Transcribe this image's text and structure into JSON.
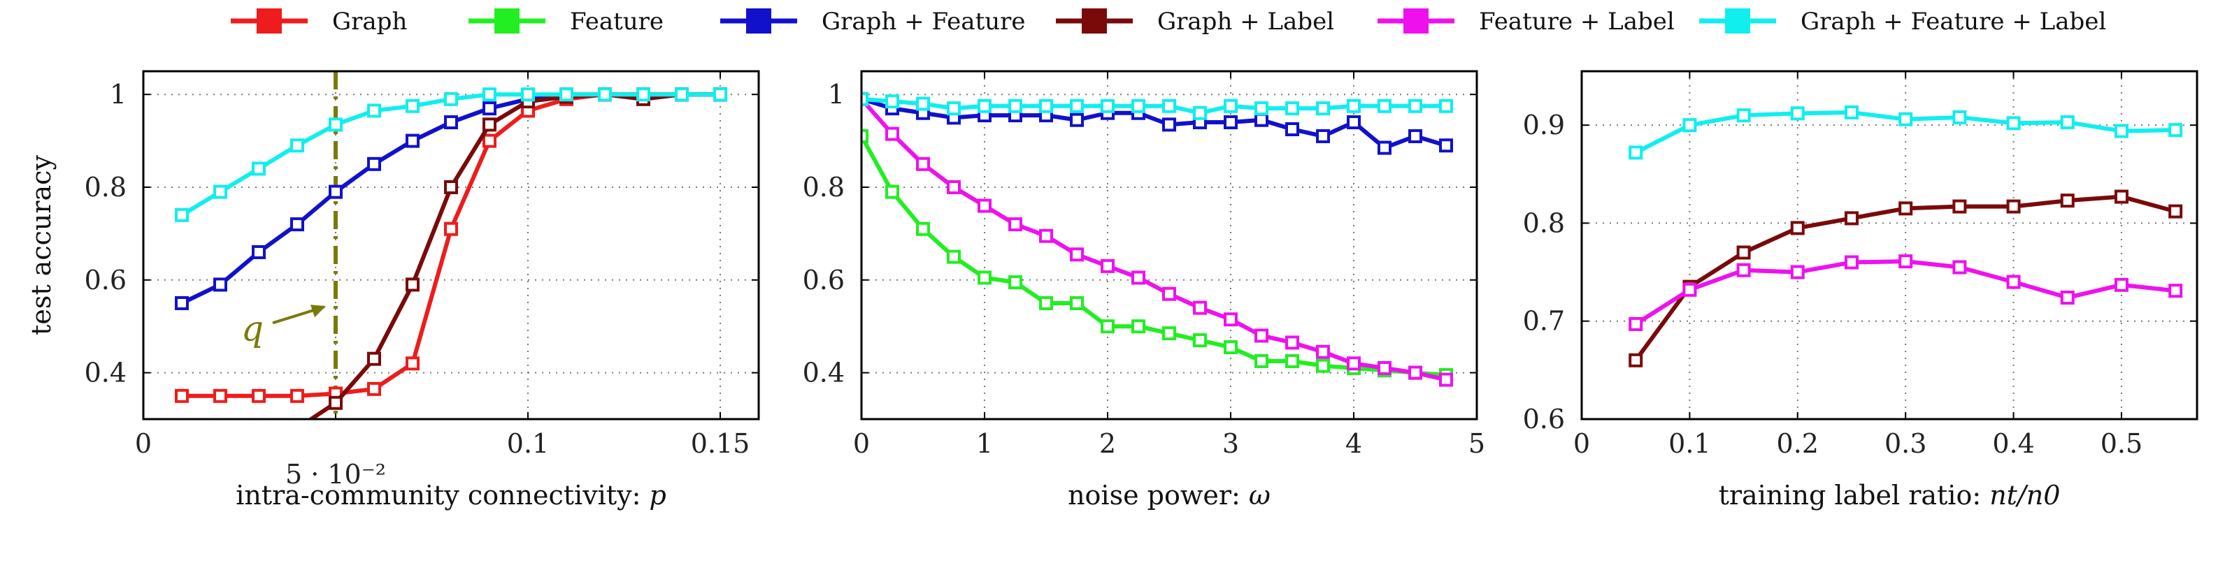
{
  "legend": {
    "items": [
      {
        "name": "Graph",
        "color": "#ee1c1c"
      },
      {
        "name": "Feature",
        "color": "#22ee22"
      },
      {
        "name": "Graph + Feature",
        "color": "#1111cc"
      },
      {
        "name": "Graph + Label",
        "color": "#7a0a0a"
      },
      {
        "name": "Feature + Label",
        "color": "#ee11ee"
      },
      {
        "name": "Graph + Feature + Label",
        "color": "#11eeee"
      }
    ]
  },
  "chart_data": [
    {
      "type": "line",
      "xlabel": "intra-community connectivity: p",
      "ylabel": "test accuracy",
      "xlim": [
        0,
        0.16
      ],
      "ylim": [
        0.3,
        1.05
      ],
      "xticks": [
        0,
        0.05,
        0.1,
        0.15
      ],
      "xtick_labels": [
        "0",
        "5 · 10⁻²",
        "0.1",
        "0.15"
      ],
      "yticks": [
        0.4,
        0.6,
        0.8,
        1
      ],
      "ytick_labels": [
        "0.4",
        "0.6",
        "0.8",
        "1"
      ],
      "grid": true,
      "annotation": {
        "text": "q",
        "x": 0.05
      },
      "series": [
        {
          "name": "Graph",
          "color": "#ee1c1c",
          "x": [
            0.01,
            0.02,
            0.03,
            0.04,
            0.05,
            0.06,
            0.07,
            0.08,
            0.09,
            0.1,
            0.11,
            0.12,
            0.13,
            0.14,
            0.15
          ],
          "y": [
            0.35,
            0.35,
            0.35,
            0.35,
            0.355,
            0.365,
            0.42,
            0.71,
            0.9,
            0.965,
            0.99,
            1.0,
            1.0,
            1.0,
            1.0
          ]
        },
        {
          "name": "Graph + Feature",
          "color": "#1111cc",
          "x": [
            0.01,
            0.02,
            0.03,
            0.04,
            0.05,
            0.06,
            0.07,
            0.08,
            0.09,
            0.1,
            0.11,
            0.12,
            0.13,
            0.14,
            0.15
          ],
          "y": [
            0.55,
            0.59,
            0.66,
            0.72,
            0.79,
            0.85,
            0.9,
            0.94,
            0.97,
            0.99,
            1.0,
            1.0,
            1.0,
            1.0,
            1.0
          ]
        },
        {
          "name": "Graph + Label",
          "color": "#7a0a0a",
          "x": [
            0.04,
            0.05,
            0.06,
            0.07,
            0.08,
            0.09,
            0.1,
            0.11,
            0.12,
            0.13,
            0.14,
            0.15
          ],
          "y": [
            0.28,
            0.335,
            0.43,
            0.59,
            0.8,
            0.935,
            0.985,
            0.995,
            1.0,
            0.99,
            1.0,
            1.0
          ]
        },
        {
          "name": "Graph + Feature + Label",
          "color": "#11eeee",
          "x": [
            0.01,
            0.02,
            0.03,
            0.04,
            0.05,
            0.06,
            0.07,
            0.08,
            0.09,
            0.1,
            0.11,
            0.12,
            0.13,
            0.14,
            0.15
          ],
          "y": [
            0.74,
            0.79,
            0.84,
            0.89,
            0.935,
            0.965,
            0.975,
            0.99,
            1.0,
            1.0,
            1.0,
            1.0,
            1.0,
            1.0,
            1.0
          ]
        }
      ]
    },
    {
      "type": "line",
      "xlabel": "noise power: ω",
      "ylabel": "",
      "xlim": [
        0,
        5
      ],
      "ylim": [
        0.3,
        1.05
      ],
      "xticks": [
        0,
        1,
        2,
        3,
        4,
        5
      ],
      "xtick_labels": [
        "0",
        "1",
        "2",
        "3",
        "4",
        "5"
      ],
      "yticks": [
        0.4,
        0.6,
        0.8,
        1
      ],
      "ytick_labels": [
        "0.4",
        "0.6",
        "0.8",
        "1"
      ],
      "grid": true,
      "series": [
        {
          "name": "Feature",
          "color": "#22ee22",
          "x": [
            0,
            0.25,
            0.5,
            0.75,
            1,
            1.25,
            1.5,
            1.75,
            2,
            2.25,
            2.5,
            2.75,
            3,
            3.25,
            3.5,
            3.75,
            4,
            4.25,
            4.5,
            4.75
          ],
          "y": [
            0.91,
            0.79,
            0.71,
            0.65,
            0.605,
            0.595,
            0.55,
            0.55,
            0.5,
            0.5,
            0.485,
            0.47,
            0.455,
            0.425,
            0.425,
            0.415,
            0.41,
            0.405,
            0.4,
            0.395
          ]
        },
        {
          "name": "Graph + Feature",
          "color": "#1111cc",
          "x": [
            0,
            0.25,
            0.5,
            0.75,
            1,
            1.25,
            1.5,
            1.75,
            2,
            2.25,
            2.5,
            2.75,
            3,
            3.25,
            3.5,
            3.75,
            4,
            4.25,
            4.5,
            4.75
          ],
          "y": [
            0.99,
            0.97,
            0.96,
            0.95,
            0.955,
            0.955,
            0.955,
            0.945,
            0.96,
            0.96,
            0.935,
            0.94,
            0.94,
            0.945,
            0.925,
            0.91,
            0.94,
            0.885,
            0.91,
            0.89
          ]
        },
        {
          "name": "Feature + Label",
          "color": "#ee11ee",
          "x": [
            0,
            0.25,
            0.5,
            0.75,
            1,
            1.25,
            1.5,
            1.75,
            2,
            2.25,
            2.5,
            2.75,
            3,
            3.25,
            3.5,
            3.75,
            4,
            4.25,
            4.5,
            4.75
          ],
          "y": [
            0.99,
            0.915,
            0.85,
            0.8,
            0.76,
            0.72,
            0.695,
            0.655,
            0.63,
            0.605,
            0.57,
            0.54,
            0.515,
            0.48,
            0.465,
            0.445,
            0.42,
            0.41,
            0.4,
            0.385
          ]
        },
        {
          "name": "Graph + Feature + Label",
          "color": "#11eeee",
          "x": [
            0,
            0.25,
            0.5,
            0.75,
            1,
            1.25,
            1.5,
            1.75,
            2,
            2.25,
            2.5,
            2.75,
            3,
            3.25,
            3.5,
            3.75,
            4,
            4.25,
            4.5,
            4.75
          ],
          "y": [
            0.99,
            0.985,
            0.98,
            0.97,
            0.975,
            0.975,
            0.975,
            0.975,
            0.975,
            0.975,
            0.975,
            0.96,
            0.975,
            0.97,
            0.97,
            0.97,
            0.975,
            0.975,
            0.975,
            0.975
          ]
        }
      ]
    },
    {
      "type": "line",
      "xlabel": "training label ratio: nt/n0",
      "ylabel": "",
      "xlim": [
        0,
        0.57
      ],
      "ylim": [
        0.6,
        0.955
      ],
      "xticks": [
        0,
        0.1,
        0.2,
        0.3,
        0.4,
        0.5
      ],
      "xtick_labels": [
        "0",
        "0.1",
        "0.2",
        "0.3",
        "0.4",
        "0.5"
      ],
      "yticks": [
        0.6,
        0.7,
        0.8,
        0.9
      ],
      "ytick_labels": [
        "0.6",
        "0.7",
        "0.8",
        "0.9"
      ],
      "grid": true,
      "series": [
        {
          "name": "Graph + Label",
          "color": "#7a0a0a",
          "x": [
            0.05,
            0.1,
            0.15,
            0.2,
            0.25,
            0.3,
            0.35,
            0.4,
            0.45,
            0.5,
            0.55
          ],
          "y": [
            0.66,
            0.735,
            0.77,
            0.795,
            0.805,
            0.815,
            0.817,
            0.817,
            0.823,
            0.827,
            0.812
          ]
        },
        {
          "name": "Feature + Label",
          "color": "#ee11ee",
          "x": [
            0.05,
            0.1,
            0.15,
            0.2,
            0.25,
            0.3,
            0.35,
            0.4,
            0.45,
            0.5,
            0.55
          ],
          "y": [
            0.697,
            0.732,
            0.752,
            0.75,
            0.76,
            0.761,
            0.755,
            0.74,
            0.724,
            0.737,
            0.731
          ]
        },
        {
          "name": "Graph + Feature + Label",
          "color": "#11eeee",
          "x": [
            0.05,
            0.1,
            0.15,
            0.2,
            0.25,
            0.3,
            0.35,
            0.4,
            0.45,
            0.5,
            0.55
          ],
          "y": [
            0.872,
            0.9,
            0.91,
            0.912,
            0.913,
            0.906,
            0.908,
            0.902,
            0.903,
            0.894,
            0.895
          ]
        }
      ]
    }
  ]
}
